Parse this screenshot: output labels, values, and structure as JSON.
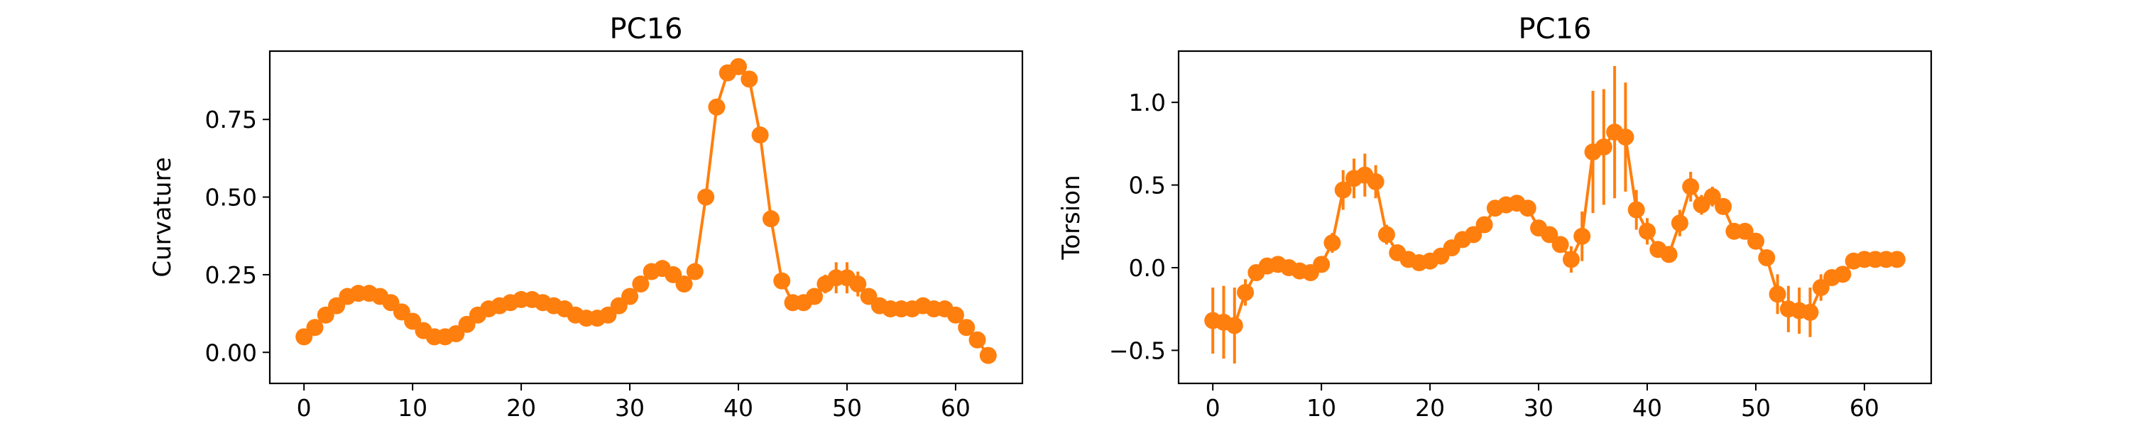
{
  "chart_data": [
    {
      "type": "line",
      "title": "PC16",
      "xlabel": "",
      "ylabel": "Curvature",
      "xlim": [
        -3.15,
        66.15
      ],
      "ylim": [
        -0.1,
        0.97
      ],
      "x_ticks": [
        0,
        10,
        20,
        30,
        40,
        50,
        60
      ],
      "y_ticks": [
        0.0,
        0.25,
        0.5,
        0.75
      ],
      "y_tick_labels": [
        "0.00",
        "0.25",
        "0.50",
        "0.75"
      ],
      "grid": false,
      "legend": "none",
      "color": "#ff7f0e",
      "series": [
        {
          "x": [
            0,
            1,
            2,
            3,
            4,
            5,
            6,
            7,
            8,
            9,
            10,
            11,
            12,
            13,
            14,
            15,
            16,
            17,
            18,
            19,
            20,
            21,
            22,
            23,
            24,
            25,
            26,
            27,
            28,
            29,
            30,
            31,
            32,
            33,
            34,
            35,
            36,
            37,
            38,
            39,
            40,
            41,
            42,
            43,
            44,
            45,
            46,
            47,
            48,
            49,
            50,
            51,
            52,
            53,
            54,
            55,
            56,
            57,
            58,
            59,
            60,
            61,
            62,
            63
          ],
          "y": [
            0.05,
            0.08,
            0.12,
            0.15,
            0.18,
            0.19,
            0.19,
            0.18,
            0.16,
            0.13,
            0.1,
            0.07,
            0.05,
            0.05,
            0.06,
            0.09,
            0.12,
            0.14,
            0.15,
            0.16,
            0.17,
            0.17,
            0.16,
            0.15,
            0.14,
            0.12,
            0.11,
            0.11,
            0.12,
            0.15,
            0.18,
            0.22,
            0.26,
            0.27,
            0.25,
            0.22,
            0.26,
            0.5,
            0.79,
            0.9,
            0.92,
            0.88,
            0.7,
            0.43,
            0.23,
            0.16,
            0.16,
            0.18,
            0.22,
            0.24,
            0.24,
            0.22,
            0.18,
            0.15,
            0.14,
            0.14,
            0.14,
            0.15,
            0.14,
            0.14,
            0.12,
            0.08,
            0.04,
            -0.01
          ],
          "yerr": [
            0,
            0,
            0,
            0,
            0,
            0,
            0,
            0,
            0,
            0,
            0,
            0,
            0,
            0,
            0,
            0,
            0,
            0,
            0,
            0,
            0,
            0,
            0,
            0,
            0,
            0,
            0,
            0,
            0,
            0,
            0,
            0,
            0,
            0,
            0,
            0,
            0,
            0,
            0,
            0,
            0,
            0,
            0,
            0,
            0,
            0.01,
            0.02,
            0.02,
            0.03,
            0.05,
            0.05,
            0.04,
            0,
            0,
            0,
            0,
            0,
            0,
            0,
            0,
            0,
            0,
            0,
            0
          ]
        }
      ]
    },
    {
      "type": "line",
      "title": "PC16",
      "xlabel": "",
      "ylabel": "Torsion",
      "xlim": [
        -3.15,
        66.15
      ],
      "ylim": [
        -0.7,
        1.31
      ],
      "x_ticks": [
        0,
        10,
        20,
        30,
        40,
        50,
        60
      ],
      "y_ticks": [
        -0.5,
        0.0,
        0.5,
        1.0
      ],
      "y_tick_labels": [
        "−0.5",
        "0.0",
        "0.5",
        "1.0"
      ],
      "grid": false,
      "legend": "none",
      "color": "#ff7f0e",
      "series": [
        {
          "x": [
            0,
            1,
            2,
            3,
            4,
            5,
            6,
            7,
            8,
            9,
            10,
            11,
            12,
            13,
            14,
            15,
            16,
            17,
            18,
            19,
            20,
            21,
            22,
            23,
            24,
            25,
            26,
            27,
            28,
            29,
            30,
            31,
            32,
            33,
            34,
            35,
            36,
            37,
            38,
            39,
            40,
            41,
            42,
            43,
            44,
            45,
            46,
            47,
            48,
            49,
            50,
            51,
            52,
            53,
            54,
            55,
            56,
            57,
            58,
            59,
            60,
            61,
            62,
            63
          ],
          "y": [
            -0.32,
            -0.33,
            -0.35,
            -0.15,
            -0.03,
            0.01,
            0.02,
            0.0,
            -0.02,
            -0.03,
            0.02,
            0.15,
            0.47,
            0.54,
            0.56,
            0.52,
            0.2,
            0.09,
            0.05,
            0.03,
            0.04,
            0.07,
            0.12,
            0.17,
            0.2,
            0.26,
            0.36,
            0.38,
            0.39,
            0.36,
            0.24,
            0.2,
            0.14,
            0.05,
            0.19,
            0.7,
            0.73,
            0.82,
            0.79,
            0.35,
            0.22,
            0.11,
            0.08,
            0.27,
            0.49,
            0.38,
            0.43,
            0.37,
            0.22,
            0.22,
            0.16,
            0.06,
            -0.16,
            -0.25,
            -0.26,
            -0.27,
            -0.12,
            -0.06,
            -0.04,
            0.04,
            0.05,
            0.05,
            0.05,
            0.05
          ],
          "yerr": [
            0.2,
            0.22,
            0.23,
            0.08,
            0.04,
            0.02,
            0.02,
            0.02,
            0.02,
            0.02,
            0.03,
            0.06,
            0.12,
            0.12,
            0.13,
            0.1,
            0.06,
            0.04,
            0.03,
            0.03,
            0.03,
            0.03,
            0.03,
            0.03,
            0.03,
            0.04,
            0.05,
            0.05,
            0.05,
            0.05,
            0.04,
            0.04,
            0.05,
            0.08,
            0.15,
            0.37,
            0.35,
            0.4,
            0.33,
            0.12,
            0.08,
            0.04,
            0.04,
            0.08,
            0.09,
            0.06,
            0.06,
            0.05,
            0.05,
            0.05,
            0.05,
            0.05,
            0.12,
            0.14,
            0.14,
            0.15,
            0.08,
            0.03,
            0.02,
            0.02,
            0.02,
            0.02,
            0.02,
            0.02
          ]
        }
      ]
    }
  ]
}
